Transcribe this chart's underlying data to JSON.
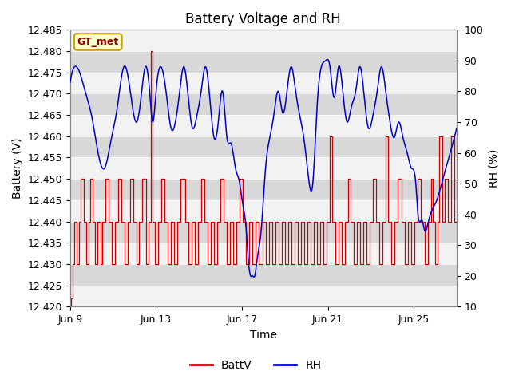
{
  "title": "Battery Voltage and RH",
  "xlabel": "Time",
  "ylabel_left": "Battery (V)",
  "ylabel_right": "RH (%)",
  "ylim_left": [
    12.42,
    12.485
  ],
  "ylim_right": [
    10,
    100
  ],
  "yticks_left": [
    12.42,
    12.425,
    12.43,
    12.435,
    12.44,
    12.445,
    12.45,
    12.455,
    12.46,
    12.465,
    12.47,
    12.475,
    12.48,
    12.485
  ],
  "yticks_right": [
    10,
    20,
    30,
    40,
    50,
    60,
    70,
    80,
    90,
    100
  ],
  "xtick_labels": [
    "Jun 9",
    "Jun 13",
    "Jun 17",
    "Jun 21",
    "Jun 25"
  ],
  "xtick_positions": [
    0,
    4,
    8,
    12,
    16
  ],
  "legend_label": "GT_met",
  "legend_bg": "#ffffcc",
  "legend_border": "#c8a000",
  "legend_text_color": "#8b0000",
  "line_color_batt": "#cc0000",
  "line_color_rh": "#0000cc",
  "plot_bg": "#d8d8d8",
  "band_color": "#f2f2f2",
  "title_fontsize": 12,
  "axis_label_fontsize": 10,
  "tick_fontsize": 9
}
